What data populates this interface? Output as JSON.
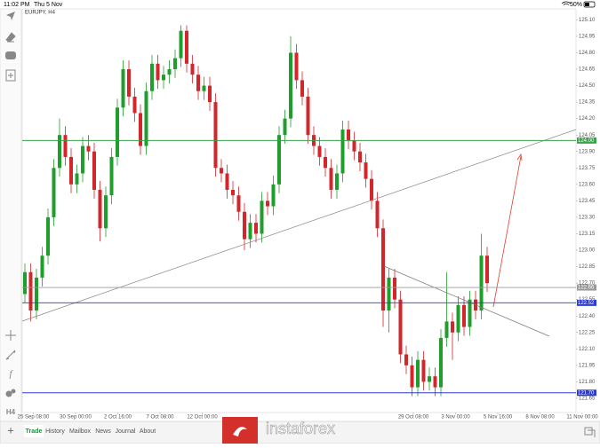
{
  "status_bar": {
    "time": "11:02 PM",
    "date": "Thu 5 Nov",
    "battery": "50%"
  },
  "toolbar": {
    "timeframe": "H4"
  },
  "tabs": [
    "Trade",
    "History",
    "Mailbox",
    "News",
    "Journal",
    "About"
  ],
  "watermark": "instaforex",
  "chart_data": {
    "type": "candlestick",
    "title": "EURJPY, H4",
    "up_color": "#1f9e2c",
    "down_color": "#d3262b",
    "ylim": [
      121.52,
      125.2
    ],
    "yticks": [
      {
        "value": 125.1,
        "label": "125.10"
      },
      124.95,
      {
        "value": 124.8,
        "label": "124.80"
      },
      124.65,
      {
        "value": 124.5,
        "label": "124.50"
      },
      124.35,
      {
        "value": 124.2,
        "label": "124.20"
      },
      124.05,
      {
        "value": 123.9,
        "label": "123.90"
      },
      123.75,
      {
        "value": 123.6,
        "label": "123.60"
      },
      123.45,
      {
        "value": 123.3,
        "label": "123.30"
      },
      123.15,
      {
        "value": 123.0,
        "label": "123.00"
      },
      122.85,
      {
        "value": 122.7,
        "label": "122.70"
      },
      122.55,
      {
        "value": 122.4,
        "label": "122.40"
      },
      122.25,
      {
        "value": 122.1,
        "label": "122.10"
      },
      121.95,
      {
        "value": 121.8,
        "label": "121.80"
      },
      121.65
    ],
    "x_labels": [
      "25 Sep 08:00",
      "30 Sep 00:00",
      "2 Oct 16:00",
      "7 Oct 08:00",
      "12 Oct 00:00",
      null,
      null,
      null,
      null,
      "29 Oct 08:00",
      "3 Nov 00:00",
      "5 Nov 16:00",
      "8 Nov 08:00",
      "11 Nov 00:00"
    ],
    "levels": [
      {
        "value": 124.0,
        "label": "124.00",
        "color": "#3aa04a"
      },
      {
        "value": 122.66,
        "label": "122.66",
        "color": "#9a9a9a"
      },
      {
        "value": 122.52,
        "label": "122.52",
        "color": "#2b3bd6"
      },
      {
        "value": 121.7,
        "label": "121.70",
        "color": "#2b3bd6"
      }
    ],
    "open": [
      122.6,
      122.8,
      122.45,
      122.75,
      122.95,
      123.3,
      123.75,
      124.05,
      123.85,
      123.6,
      123.7,
      123.95,
      123.9,
      123.55,
      123.2,
      123.5,
      123.85,
      124.3,
      124.65,
      124.4,
      124.25,
      123.95,
      124.45,
      124.7,
      124.55,
      124.6,
      124.65,
      124.75,
      125.0,
      124.7,
      124.6,
      124.45,
      124.5,
      124.35,
      123.75,
      123.7,
      123.55,
      123.5,
      123.35,
      123.1,
      123.25,
      123.15,
      123.45,
      123.4,
      123.6,
      124.05,
      124.2,
      124.8,
      124.55,
      124.4,
      124.05,
      123.95,
      123.85,
      123.75,
      123.55,
      123.7,
      124.1,
      124.0,
      123.9,
      123.8,
      123.65,
      123.45,
      123.2,
      122.45,
      122.75,
      122.55,
      122.05,
      121.95,
      121.75,
      122.0,
      121.8,
      121.85,
      121.75,
      122.2,
      122.35,
      122.25,
      122.5,
      122.3,
      122.55,
      122.45,
      122.95
    ],
    "high": [
      122.88,
      122.88,
      122.83,
      123.03,
      123.38,
      123.83,
      124.2,
      124.13,
      123.93,
      123.78,
      124.03,
      124.05,
      123.98,
      123.63,
      123.58,
      123.93,
      124.38,
      124.73,
      124.73,
      124.48,
      124.33,
      124.53,
      124.78,
      124.78,
      124.68,
      124.73,
      124.83,
      125.05,
      125.05,
      124.78,
      124.68,
      124.58,
      124.58,
      124.43,
      123.83,
      123.78,
      123.63,
      123.58,
      123.43,
      123.33,
      123.33,
      123.53,
      123.53,
      123.68,
      124.13,
      124.28,
      124.95,
      124.88,
      124.63,
      124.48,
      124.13,
      124.03,
      123.93,
      123.83,
      123.78,
      124.18,
      124.18,
      124.08,
      123.98,
      123.88,
      123.73,
      123.53,
      123.28,
      122.83,
      122.83,
      122.63,
      122.13,
      122.03,
      122.08,
      122.08,
      121.93,
      121.93,
      122.28,
      122.8,
      122.43,
      122.58,
      122.58,
      122.63,
      122.63,
      123.15,
      123.03
    ],
    "low": [
      122.52,
      122.35,
      122.37,
      122.67,
      122.87,
      123.22,
      123.67,
      123.77,
      123.52,
      123.52,
      123.62,
      123.82,
      123.47,
      123.08,
      123.12,
      123.42,
      123.77,
      124.22,
      124.32,
      124.17,
      123.87,
      123.87,
      124.37,
      124.47,
      124.47,
      124.52,
      124.57,
      124.67,
      124.62,
      124.52,
      124.37,
      124.37,
      124.27,
      123.67,
      123.62,
      123.47,
      123.42,
      123.27,
      123.0,
      123.02,
      123.07,
      123.07,
      123.32,
      123.32,
      123.52,
      123.97,
      124.12,
      124.47,
      124.32,
      123.97,
      123.87,
      123.77,
      123.67,
      123.47,
      123.47,
      123.62,
      123.92,
      123.82,
      123.72,
      123.57,
      123.37,
      123.12,
      122.3,
      122.25,
      122.47,
      121.97,
      121.87,
      121.67,
      121.67,
      121.72,
      121.72,
      121.67,
      121.67,
      122.12,
      122.0,
      122.17,
      122.22,
      122.22,
      122.37,
      122.37,
      122.62
    ],
    "close": [
      122.8,
      122.45,
      122.75,
      122.95,
      123.3,
      123.75,
      124.05,
      123.85,
      123.6,
      123.7,
      123.95,
      123.9,
      123.55,
      123.2,
      123.5,
      123.85,
      124.3,
      124.65,
      124.4,
      124.25,
      123.95,
      124.45,
      124.7,
      124.55,
      124.6,
      124.65,
      124.75,
      125.0,
      124.7,
      124.6,
      124.45,
      124.5,
      124.35,
      123.75,
      123.7,
      123.55,
      123.5,
      123.35,
      123.1,
      123.25,
      123.15,
      123.45,
      123.4,
      123.6,
      124.05,
      124.2,
      124.8,
      124.55,
      124.4,
      124.05,
      123.95,
      123.85,
      123.75,
      123.55,
      123.7,
      124.1,
      124.0,
      123.9,
      123.8,
      123.65,
      123.45,
      123.2,
      122.45,
      122.75,
      122.55,
      122.05,
      121.95,
      121.75,
      122.0,
      121.8,
      121.85,
      121.75,
      122.2,
      122.35,
      122.25,
      122.5,
      122.3,
      122.55,
      122.45,
      122.95,
      122.7
    ]
  }
}
